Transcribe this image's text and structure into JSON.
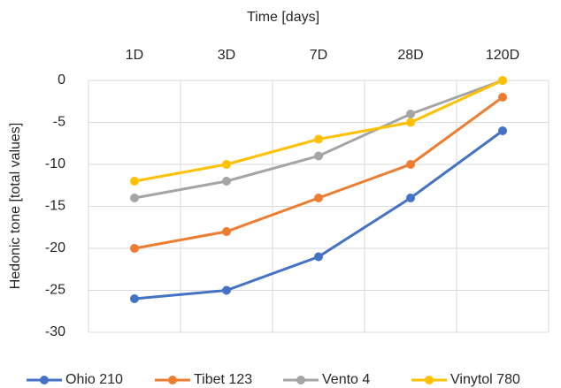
{
  "chart_data": {
    "type": "line",
    "x_label": "Time [days]",
    "y_label": "Hedonic tone [total values]",
    "categories": [
      "1D",
      "3D",
      "7D",
      "28D",
      "120D"
    ],
    "series": [
      {
        "name": "Ohio 210",
        "color": "#4472c4",
        "values": [
          -26,
          -25,
          -21,
          -14,
          -6
        ]
      },
      {
        "name": "Tibet 123",
        "color": "#ed7d31",
        "values": [
          -20,
          -18,
          -14,
          -10,
          -2
        ]
      },
      {
        "name": "Vento 4",
        "color": "#a5a5a5",
        "values": [
          -14,
          -12,
          -9,
          -4,
          0
        ]
      },
      {
        "name": "Vinytol 780",
        "color": "#ffc000",
        "values": [
          -12,
          -10,
          -7,
          -5,
          0
        ]
      }
    ],
    "ylim": [
      -30,
      0
    ],
    "yticks": [
      0,
      -5,
      -10,
      -15,
      -20,
      -25,
      -30
    ],
    "grid": true
  }
}
